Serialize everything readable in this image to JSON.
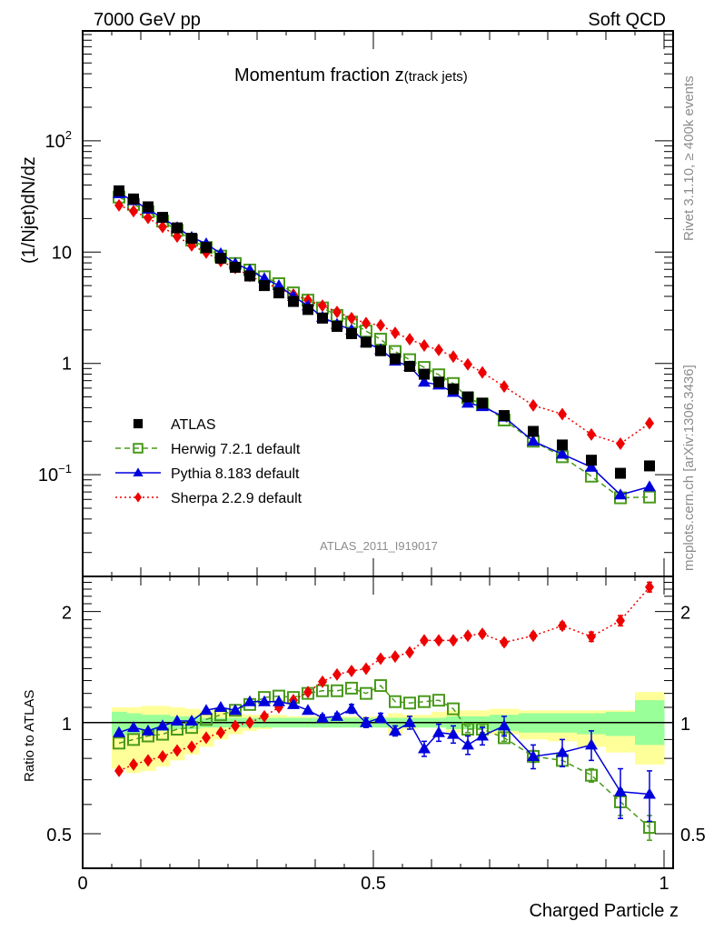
{
  "header": {
    "left": "7000 GeV pp",
    "right": "Soft QCD"
  },
  "side_labels": {
    "rivet": "Rivet 3.1.10, ≥ 400k events",
    "mcplots": "mcplots.cern.ch [arXiv:1306.3436]"
  },
  "analysis_id": "ATLAS_2011_I919017",
  "chart_data": [
    {
      "type": "scatter",
      "panel": "main",
      "title": "Momentum fraction z",
      "title_suffix": "(track jets)",
      "xlabel": "",
      "ylabel": "(1/Njet)dN/dz",
      "xlim": [
        0,
        1.0
      ],
      "ylim": [
        0.0122,
        970
      ],
      "yscale": "log",
      "ytick_labels": [
        {
          "value": 100,
          "label": "10",
          "sup": "2"
        },
        {
          "value": 10,
          "label": "10",
          "sup": ""
        },
        {
          "value": 1,
          "label": "1",
          "sup": ""
        },
        {
          "value": 0.1,
          "label": "10",
          "sup": "−1"
        }
      ],
      "legend_position": "lower-left",
      "x": [
        0.0625,
        0.0875,
        0.1125,
        0.1375,
        0.1625,
        0.1875,
        0.2125,
        0.2375,
        0.2625,
        0.2875,
        0.3125,
        0.3375,
        0.3625,
        0.3875,
        0.4125,
        0.4375,
        0.4625,
        0.4875,
        0.5125,
        0.5375,
        0.5625,
        0.5875,
        0.6125,
        0.6375,
        0.6625,
        0.6875,
        0.725,
        0.775,
        0.825,
        0.875,
        0.925,
        0.975
      ],
      "series": [
        {
          "name": "ATLAS",
          "marker": "square-filled",
          "line": "none",
          "color": "#000000",
          "values": [
            35.5,
            30.0,
            25.5,
            20.5,
            16.5,
            13.3,
            11.0,
            8.8,
            7.3,
            6.1,
            5.0,
            4.3,
            3.6,
            3.05,
            2.55,
            2.15,
            1.85,
            1.55,
            1.3,
            1.1,
            0.94,
            0.8,
            0.68,
            0.59,
            0.5,
            0.44,
            0.34,
            0.245,
            0.185,
            0.135,
            0.103,
            0.12
          ]
        },
        {
          "name": "Herwig 7.2.1 default",
          "marker": "square-open",
          "line": "dashed",
          "color": "#4a9a1c",
          "values": [
            31.2,
            26.8,
            23.0,
            19.0,
            15.7,
            12.8,
            11.0,
            9.2,
            7.9,
            6.9,
            6.0,
            5.2,
            4.3,
            3.7,
            3.15,
            2.7,
            2.35,
            1.95,
            1.65,
            1.28,
            1.08,
            0.92,
            0.79,
            0.66,
            0.49,
            0.43,
            0.31,
            0.2,
            0.145,
            0.097,
            0.062,
            0.063
          ]
        },
        {
          "name": "Pythia 8.183 default",
          "marker": "triangle-filled",
          "line": "solid",
          "color": "#0000dd",
          "values": [
            33.5,
            29.0,
            24.3,
            20.2,
            16.6,
            13.6,
            11.9,
            9.7,
            7.9,
            6.9,
            5.8,
            5.0,
            4.0,
            3.3,
            2.6,
            2.25,
            2.0,
            1.55,
            1.33,
            1.05,
            0.94,
            0.68,
            0.64,
            0.55,
            0.44,
            0.41,
            0.33,
            0.2,
            0.153,
            0.117,
            0.066,
            0.078
          ]
        },
        {
          "name": "Sherpa 2.2.9 default",
          "marker": "diamond-filled",
          "line": "dotted",
          "color": "#ee0000",
          "values": [
            26.3,
            23.3,
            20.3,
            16.8,
            13.8,
            11.5,
            9.9,
            8.3,
            7.2,
            6.1,
            5.3,
            4.7,
            4.15,
            3.7,
            3.3,
            2.9,
            2.55,
            2.3,
            2.2,
            1.88,
            1.65,
            1.45,
            1.32,
            1.15,
            0.98,
            0.83,
            0.62,
            0.42,
            0.35,
            0.23,
            0.19,
            0.29
          ]
        }
      ]
    },
    {
      "type": "scatter",
      "panel": "ratio",
      "xlabel": "Charged Particle z",
      "ylabel": "Ratio to ATLAS",
      "xlim": [
        0,
        1.0
      ],
      "ylim": [
        0.403,
        2.49
      ],
      "yscale": "log",
      "ytick_labels": [
        {
          "value": 0.5,
          "label": "0.5"
        },
        {
          "value": 1,
          "label": "1"
        },
        {
          "value": 2,
          "label": "2"
        }
      ],
      "xtick_labels": [
        {
          "value": 0,
          "label": "0"
        },
        {
          "value": 0.5,
          "label": "0.5"
        },
        {
          "value": 1,
          "label": "1"
        }
      ],
      "reference_line": 1.0,
      "bins": [
        [
          0.05,
          0.075
        ],
        [
          0.075,
          0.1
        ],
        [
          0.1,
          0.125
        ],
        [
          0.125,
          0.15
        ],
        [
          0.15,
          0.175
        ],
        [
          0.175,
          0.2
        ],
        [
          0.2,
          0.225
        ],
        [
          0.225,
          0.25
        ],
        [
          0.25,
          0.275
        ],
        [
          0.275,
          0.3
        ],
        [
          0.3,
          0.325
        ],
        [
          0.325,
          0.35
        ],
        [
          0.35,
          0.375
        ],
        [
          0.375,
          0.4
        ],
        [
          0.4,
          0.425
        ],
        [
          0.425,
          0.45
        ],
        [
          0.45,
          0.475
        ],
        [
          0.475,
          0.5
        ],
        [
          0.5,
          0.525
        ],
        [
          0.525,
          0.55
        ],
        [
          0.55,
          0.575
        ],
        [
          0.575,
          0.6
        ],
        [
          0.6,
          0.625
        ],
        [
          0.625,
          0.65
        ],
        [
          0.65,
          0.675
        ],
        [
          0.675,
          0.7
        ],
        [
          0.7,
          0.75
        ],
        [
          0.75,
          0.8
        ],
        [
          0.8,
          0.85
        ],
        [
          0.85,
          0.9
        ],
        [
          0.9,
          0.95
        ],
        [
          0.95,
          1.0
        ]
      ],
      "bands": [
        {
          "name": "stat uncertainty",
          "color": "#99ff99",
          "low": [
            0.92,
            0.93,
            0.94,
            0.95,
            0.96,
            0.96,
            0.97,
            0.97,
            0.97,
            0.97,
            0.97,
            0.97,
            0.97,
            0.97,
            0.97,
            0.97,
            0.97,
            0.97,
            0.97,
            0.97,
            0.97,
            0.97,
            0.97,
            0.96,
            0.96,
            0.96,
            0.95,
            0.94,
            0.94,
            0.93,
            0.92,
            0.87
          ],
          "high": [
            1.07,
            1.06,
            1.05,
            1.05,
            1.04,
            1.04,
            1.03,
            1.03,
            1.03,
            1.03,
            1.03,
            1.03,
            1.03,
            1.03,
            1.03,
            1.03,
            1.03,
            1.03,
            1.03,
            1.03,
            1.03,
            1.03,
            1.03,
            1.04,
            1.04,
            1.04,
            1.05,
            1.06,
            1.06,
            1.06,
            1.07,
            1.15
          ]
        },
        {
          "name": "total uncertainty",
          "color": "#ffff99",
          "low": [
            0.75,
            0.73,
            0.74,
            0.76,
            0.79,
            0.82,
            0.86,
            0.9,
            0.93,
            0.95,
            0.96,
            0.97,
            0.97,
            0.97,
            0.97,
            0.97,
            0.97,
            0.97,
            0.97,
            0.93,
            0.96,
            0.97,
            0.97,
            0.94,
            0.96,
            0.96,
            0.93,
            0.9,
            0.89,
            0.86,
            0.83,
            0.77
          ],
          "high": [
            1.1,
            1.1,
            1.11,
            1.11,
            1.1,
            1.09,
            1.08,
            1.07,
            1.06,
            1.05,
            1.05,
            1.05,
            1.04,
            1.04,
            1.04,
            1.04,
            1.04,
            1.04,
            1.04,
            1.06,
            1.05,
            1.05,
            1.07,
            1.08,
            1.08,
            1.08,
            1.09,
            1.08,
            1.08,
            1.08,
            1.08,
            1.21
          ]
        }
      ],
      "x": [
        0.0625,
        0.0875,
        0.1125,
        0.1375,
        0.1625,
        0.1875,
        0.2125,
        0.2375,
        0.2625,
        0.2875,
        0.3125,
        0.3375,
        0.3625,
        0.3875,
        0.4125,
        0.4375,
        0.4625,
        0.4875,
        0.5125,
        0.5375,
        0.5625,
        0.5875,
        0.6125,
        0.6375,
        0.6625,
        0.6875,
        0.725,
        0.775,
        0.825,
        0.875,
        0.925,
        0.975
      ],
      "series": [
        {
          "name": "Herwig 7.2.1 default",
          "marker": "square-open",
          "line": "dashed",
          "color": "#4a9a1c",
          "values": [
            0.88,
            0.9,
            0.92,
            0.93,
            0.96,
            0.97,
            1.02,
            1.05,
            1.08,
            1.12,
            1.17,
            1.18,
            1.17,
            1.2,
            1.22,
            1.22,
            1.24,
            1.2,
            1.26,
            1.14,
            1.13,
            1.14,
            1.15,
            1.09,
            0.96,
            0.96,
            0.91,
            0.81,
            0.79,
            0.72,
            0.61,
            0.52
          ],
          "err": [
            0.01,
            0.01,
            0.01,
            0.01,
            0.01,
            0.01,
            0.01,
            0.01,
            0.01,
            0.01,
            0.01,
            0.01,
            0.01,
            0.01,
            0.01,
            0.01,
            0.01,
            0.01,
            0.01,
            0.01,
            0.01,
            0.01,
            0.01,
            0.01,
            0.02,
            0.02,
            0.02,
            0.03,
            0.03,
            0.03,
            0.05,
            0.04
          ]
        },
        {
          "name": "Pythia 8.183 default",
          "marker": "triangle-filled",
          "line": "solid",
          "color": "#0000dd",
          "values": [
            0.94,
            0.97,
            0.95,
            0.98,
            1.01,
            1.01,
            1.08,
            1.1,
            1.08,
            1.14,
            1.14,
            1.14,
            1.12,
            1.08,
            1.03,
            1.04,
            1.09,
            1.0,
            1.03,
            0.95,
            1.0,
            0.85,
            0.94,
            0.93,
            0.87,
            0.92,
            0.98,
            0.81,
            0.83,
            0.87,
            0.65,
            0.64
          ],
          "err": [
            0.01,
            0.01,
            0.01,
            0.01,
            0.01,
            0.01,
            0.01,
            0.01,
            0.01,
            0.01,
            0.01,
            0.01,
            0.01,
            0.01,
            0.02,
            0.02,
            0.03,
            0.03,
            0.03,
            0.03,
            0.04,
            0.04,
            0.05,
            0.05,
            0.05,
            0.05,
            0.06,
            0.06,
            0.07,
            0.08,
            0.1,
            0.1
          ]
        },
        {
          "name": "Sherpa 2.2.9 default",
          "marker": "diamond-filled",
          "line": "dotted",
          "color": "#ee0000",
          "values": [
            0.74,
            0.77,
            0.79,
            0.81,
            0.84,
            0.86,
            0.91,
            0.94,
            0.98,
            1.0,
            1.04,
            1.1,
            1.15,
            1.21,
            1.29,
            1.35,
            1.38,
            1.4,
            1.49,
            1.51,
            1.55,
            1.67,
            1.67,
            1.67,
            1.72,
            1.74,
            1.65,
            1.72,
            1.83,
            1.71,
            1.89,
            2.33
          ],
          "err": [
            0.01,
            0.01,
            0.01,
            0.01,
            0.01,
            0.01,
            0.01,
            0.01,
            0.01,
            0.01,
            0.01,
            0.01,
            0.01,
            0.01,
            0.01,
            0.01,
            0.01,
            0.01,
            0.02,
            0.02,
            0.02,
            0.02,
            0.02,
            0.02,
            0.03,
            0.03,
            0.03,
            0.03,
            0.04,
            0.05,
            0.06,
            0.07
          ]
        }
      ]
    }
  ]
}
